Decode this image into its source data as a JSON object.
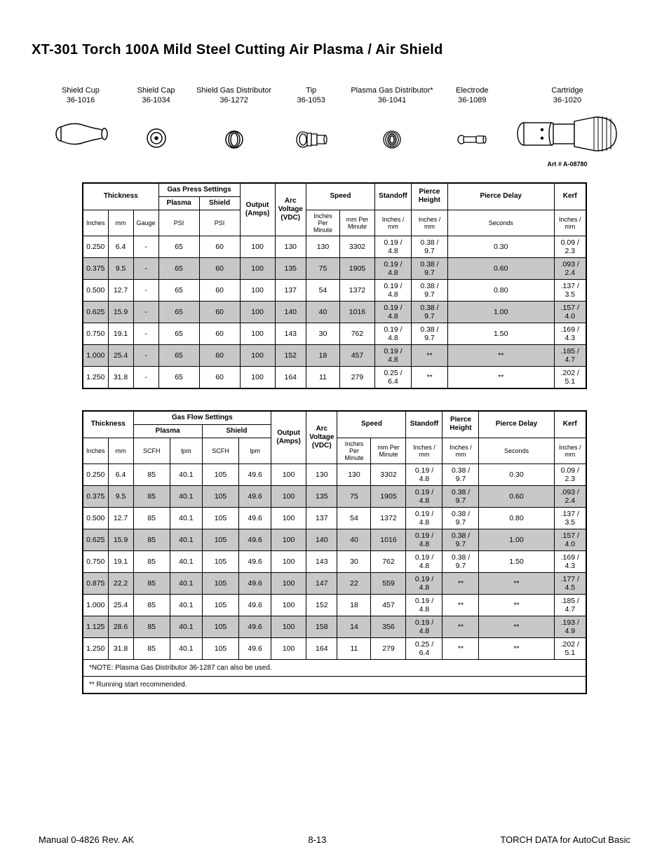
{
  "title": "XT-301 Torch 100A Mild Steel Cutting Air Plasma / Air Shield",
  "parts": [
    {
      "name": "Shield Cup",
      "num": "36-1016"
    },
    {
      "name": "Shield Cap",
      "num": "36-1034"
    },
    {
      "name": "Shield Gas Distributor",
      "num": "36-1272"
    },
    {
      "name": "Tip",
      "num": "36-1053"
    },
    {
      "name": "Plasma Gas Distributor*",
      "num": "36-1041"
    },
    {
      "name": "Electrode",
      "num": "36-1089"
    },
    {
      "name": "Cartridge",
      "num": "36-1020"
    }
  ],
  "artno": "Art # A-08780",
  "t1": {
    "h": {
      "thick": "Thickness",
      "gas": "Gas Press Settings",
      "amps": "Output (Amps)",
      "volts": "Arc Voltage (VDC)",
      "speed": "Speed",
      "stand": "Standoff",
      "pierce": "Pierce Height",
      "delay": "Pierce Delay",
      "kerf": "Kerf",
      "in": "Inches",
      "mm": "mm",
      "ga": "Gauge",
      "plasma": "Plasma",
      "shield": "Shield",
      "ipm": "Inches Per Minute",
      "mmm": "mm Per Minute",
      "stdsub": "Inches / mm",
      "phsub": "Inches / mm",
      "dsub": "Seconds",
      "ksub": "Inches / mm",
      "psi": "PSI"
    },
    "rows": [
      {
        "in": "0.250",
        "mm": "6.4",
        "ga": "-",
        "pl": "65",
        "sh": "60",
        "a": "100",
        "v": "130",
        "ipm": "130",
        "mmm": "3302",
        "std": "0.19 / 4.8",
        "ph": "0.38 / 9.7",
        "d": "0.30",
        "k": "0.09 / 2.3"
      },
      {
        "in": "0.375",
        "mm": "9.5",
        "ga": "-",
        "pl": "65",
        "sh": "60",
        "a": "100",
        "v": "135",
        "ipm": "75",
        "mmm": "1905",
        "std": "0.19 / 4.8",
        "ph": "0.38 / 9.7",
        "d": "0.60",
        "k": ".093 / 2.4",
        "shade": true
      },
      {
        "in": "0.500",
        "mm": "12.7",
        "ga": "-",
        "pl": "65",
        "sh": "60",
        "a": "100",
        "v": "137",
        "ipm": "54",
        "mmm": "1372",
        "std": "0.19 / 4.8",
        "ph": "0.38 / 9.7",
        "d": "0.80",
        "k": ".137 / 3.5"
      },
      {
        "in": "0.625",
        "mm": "15.9",
        "ga": "-",
        "pl": "65",
        "sh": "60",
        "a": "100",
        "v": "140",
        "ipm": "40",
        "mmm": "1016",
        "std": "0.19 / 4.8",
        "ph": "0.38 / 9.7",
        "d": "1.00",
        "k": ".157 / 4.0",
        "shade": true
      },
      {
        "in": "0.750",
        "mm": "19.1",
        "ga": "-",
        "pl": "65",
        "sh": "60",
        "a": "100",
        "v": "143",
        "ipm": "30",
        "mmm": "762",
        "std": "0.19 / 4.8",
        "ph": "0.38 / 9.7",
        "d": "1.50",
        "k": ".169 / 4.3"
      },
      {
        "in": "1.000",
        "mm": "25.4",
        "ga": "-",
        "pl": "65",
        "sh": "60",
        "a": "100",
        "v": "152",
        "ipm": "18",
        "mmm": "457",
        "std": "0.19 / 4.8",
        "ph": "**",
        "d": "**",
        "k": ".185 / 4.7",
        "shade": true
      },
      {
        "in": "1.250",
        "mm": "31.8",
        "ga": "-",
        "pl": "65",
        "sh": "60",
        "a": "100",
        "v": "164",
        "ipm": "11",
        "mmm": "279",
        "std": "0.25 / 6.4",
        "ph": "**",
        "d": "**",
        "k": ".202 / 5.1"
      }
    ]
  },
  "t2": {
    "h": {
      "thick": "Thickness",
      "gas": "Gas Flow Settings",
      "amps": "Output (Amps)",
      "volts": "Arc Voltage (VDC)",
      "speed": "Speed",
      "stand": "Standoff",
      "pierce": "Pierce Height",
      "delay": "Pierce Delay",
      "kerf": "Kerf",
      "in": "Inches",
      "mm": "mm",
      "plasma": "Plasma",
      "shield": "Shield",
      "ipm": "Inches Per Minute",
      "mmm": "mm Per Minute",
      "stdsub": "Inches / mm",
      "phsub": "Inches / mm",
      "dsub": "Seconds",
      "ksub": "Inches / mm",
      "scfh": "SCFH",
      "lpm": "lpm"
    },
    "rows": [
      {
        "in": "0.250",
        "mm": "6.4",
        "plS": "85",
        "plL": "40.1",
        "shS": "105",
        "shL": "49.6",
        "a": "100",
        "v": "130",
        "ipm": "130",
        "mmm": "3302",
        "std": "0.19 / 4.8",
        "ph": "0.38 / 9.7",
        "d": "0.30",
        "k": "0.09 / 2.3"
      },
      {
        "in": "0.375",
        "mm": "9.5",
        "plS": "85",
        "plL": "40.1",
        "shS": "105",
        "shL": "49.6",
        "a": "100",
        "v": "135",
        "ipm": "75",
        "mmm": "1905",
        "std": "0.19 / 4.8",
        "ph": "0.38 / 9.7",
        "d": "0.60",
        "k": ".093 / 2.4",
        "shade": true
      },
      {
        "in": "0.500",
        "mm": "12.7",
        "plS": "85",
        "plL": "40.1",
        "shS": "105",
        "shL": "49.6",
        "a": "100",
        "v": "137",
        "ipm": "54",
        "mmm": "1372",
        "std": "0.19 / 4.8",
        "ph": "0.38 / 9.7",
        "d": "0.80",
        "k": ".137 / 3.5"
      },
      {
        "in": "0.625",
        "mm": "15.9",
        "plS": "85",
        "plL": "40.1",
        "shS": "105",
        "shL": "49.6",
        "a": "100",
        "v": "140",
        "ipm": "40",
        "mmm": "1016",
        "std": "0.19 / 4.8",
        "ph": "0.38 / 9.7",
        "d": "1.00",
        "k": ".157 / 4.0",
        "shade": true
      },
      {
        "in": "0.750",
        "mm": "19.1",
        "plS": "85",
        "plL": "40.1",
        "shS": "105",
        "shL": "49.6",
        "a": "100",
        "v": "143",
        "ipm": "30",
        "mmm": "762",
        "std": "0.19 / 4.8",
        "ph": "0.38 / 9.7",
        "d": "1.50",
        "k": ".169 / 4.3"
      },
      {
        "in": "0.875",
        "mm": "22.2",
        "plS": "85",
        "plL": "40.1",
        "shS": "105",
        "shL": "49.6",
        "a": "100",
        "v": "147",
        "ipm": "22",
        "mmm": "559",
        "std": "0.19 / 4.8",
        "ph": "**",
        "d": "**",
        "k": ".177 / 4.5",
        "shade": true
      },
      {
        "in": "1.000",
        "mm": "25.4",
        "plS": "85",
        "plL": "40.1",
        "shS": "105",
        "shL": "49.6",
        "a": "100",
        "v": "152",
        "ipm": "18",
        "mmm": "457",
        "std": "0.19 / 4.8",
        "ph": "**",
        "d": "**",
        "k": ".185 / 4.7"
      },
      {
        "in": "1.125",
        "mm": "28.6",
        "plS": "85",
        "plL": "40.1",
        "shS": "105",
        "shL": "49.6",
        "a": "100",
        "v": "158",
        "ipm": "14",
        "mmm": "356",
        "std": "0.19 / 4.8",
        "ph": "**",
        "d": "**",
        "k": ".193 / 4.9",
        "shade": true
      },
      {
        "in": "1.250",
        "mm": "31.8",
        "plS": "85",
        "plL": "40.1",
        "shS": "105",
        "shL": "49.6",
        "a": "100",
        "v": "164",
        "ipm": "11",
        "mmm": "279",
        "std": "0.25 / 6.4",
        "ph": "**",
        "d": "**",
        "k": ".202 / 5.1"
      }
    ],
    "notes": [
      "*NOTE: Plasma Gas Distributor 36-1287 can also be used.",
      "** Running start recommended."
    ]
  },
  "footer": {
    "left": "Manual  0-4826 Rev. AK",
    "center": "8-13",
    "right": "TORCH DATA for AutoCut Basic"
  }
}
